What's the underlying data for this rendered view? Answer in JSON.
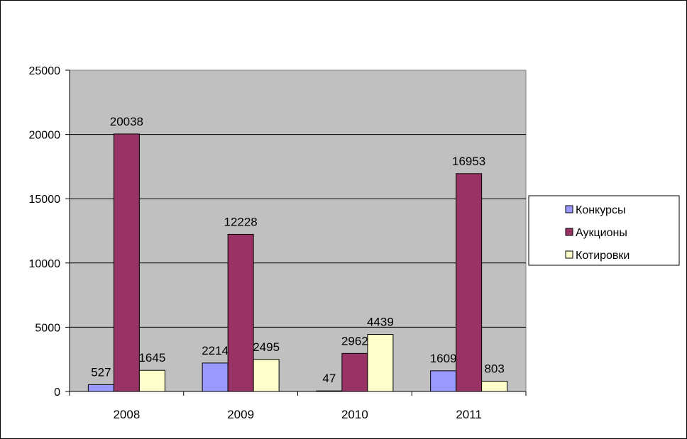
{
  "chart_data": {
    "type": "bar",
    "title": "",
    "xlabel": "",
    "ylabel": "",
    "categories": [
      "2008",
      "2009",
      "2010",
      "2011"
    ],
    "ylim": [
      0,
      25000
    ],
    "yticks": [
      0,
      5000,
      10000,
      15000,
      20000,
      25000
    ],
    "grid": true,
    "legend_position": "right",
    "plot_background": "#C0C0C0",
    "series": [
      {
        "name": "Конкурсы",
        "color": "#9999FF",
        "values": [
          527,
          2214,
          47,
          1609
        ]
      },
      {
        "name": "Аукционы",
        "color": "#993366",
        "values": [
          20038,
          12228,
          2962,
          16953
        ]
      },
      {
        "name": "Котировки",
        "color": "#FFFFCC",
        "values": [
          1645,
          2495,
          4439,
          803
        ]
      }
    ]
  }
}
